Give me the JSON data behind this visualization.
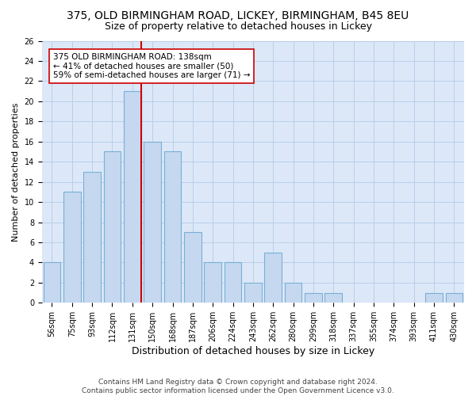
{
  "title": "375, OLD BIRMINGHAM ROAD, LICKEY, BIRMINGHAM, B45 8EU",
  "subtitle": "Size of property relative to detached houses in Lickey",
  "xlabel": "Distribution of detached houses by size in Lickey",
  "ylabel": "Number of detached properties",
  "categories": [
    "56sqm",
    "75sqm",
    "93sqm",
    "112sqm",
    "131sqm",
    "150sqm",
    "168sqm",
    "187sqm",
    "206sqm",
    "224sqm",
    "243sqm",
    "262sqm",
    "280sqm",
    "299sqm",
    "318sqm",
    "337sqm",
    "355sqm",
    "374sqm",
    "393sqm",
    "411sqm",
    "430sqm"
  ],
  "values": [
    4,
    11,
    13,
    15,
    21,
    16,
    15,
    7,
    4,
    4,
    2,
    5,
    2,
    1,
    1,
    0,
    0,
    0,
    0,
    1,
    1
  ],
  "bar_color": "#c5d8f0",
  "bar_edgecolor": "#7ab0d4",
  "vline_x": 4.45,
  "vline_color": "#cc0000",
  "annotation_text": "375 OLD BIRMINGHAM ROAD: 138sqm\n← 41% of detached houses are smaller (50)\n59% of semi-detached houses are larger (71) →",
  "annotation_box_color": "white",
  "annotation_box_edgecolor": "#cc0000",
  "ylim": [
    0,
    26
  ],
  "yticks": [
    0,
    2,
    4,
    6,
    8,
    10,
    12,
    14,
    16,
    18,
    20,
    22,
    24,
    26
  ],
  "grid_color": "#b8cfe8",
  "background_color": "#dce8f8",
  "footer_text": "Contains HM Land Registry data © Crown copyright and database right 2024.\nContains public sector information licensed under the Open Government Licence v3.0.",
  "title_fontsize": 10,
  "subtitle_fontsize": 9,
  "xlabel_fontsize": 9,
  "ylabel_fontsize": 8,
  "tick_fontsize": 7,
  "annotation_fontsize": 7.5,
  "footer_fontsize": 6.5
}
